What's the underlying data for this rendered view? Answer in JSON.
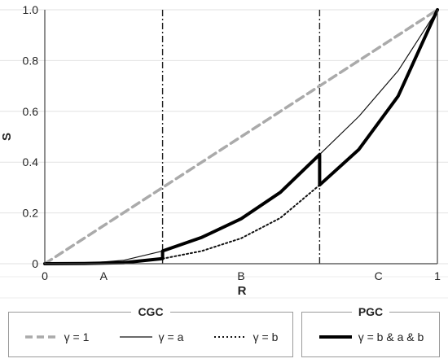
{
  "chart_data": {
    "type": "line",
    "xlabel": "R",
    "ylabel": "S",
    "xlim": [
      0,
      1
    ],
    "ylim": [
      0,
      1
    ],
    "grid": "horizontal",
    "x_tick_labels": [
      {
        "x": 0,
        "label": "0"
      },
      {
        "x": 0.15,
        "label": "A"
      },
      {
        "x": 0.5,
        "label": "B"
      },
      {
        "x": 0.85,
        "label": "C"
      },
      {
        "x": 1,
        "label": "1"
      }
    ],
    "y_tick_labels": [
      "0",
      "0.2",
      "0.4",
      "0.6",
      "0.8",
      "1.0"
    ],
    "y_ticks": [
      0,
      0.2,
      0.4,
      0.6,
      0.8,
      1.0
    ],
    "vlines": [
      0.3,
      0.7
    ],
    "series": [
      {
        "name": "γ = 1",
        "group": "CGC",
        "style": "dashed",
        "color": "#aaaaaa",
        "x": [
          0,
          1
        ],
        "y": [
          0,
          1
        ]
      },
      {
        "name": "γ = a",
        "group": "CGC",
        "style": "thin",
        "color": "#111111",
        "x": [
          0,
          0.1,
          0.2,
          0.3,
          0.4,
          0.5,
          0.6,
          0.7,
          0.8,
          0.9,
          1.0
        ],
        "y": [
          0,
          0.001,
          0.013,
          0.05,
          0.104,
          0.177,
          0.281,
          0.43,
          0.58,
          0.76,
          1.0
        ]
      },
      {
        "name": "γ = b",
        "group": "CGC",
        "style": "dotted",
        "color": "#111111",
        "x": [
          0.3,
          0.4,
          0.5,
          0.6,
          0.7
        ],
        "y": [
          0.02,
          0.05,
          0.1,
          0.18,
          0.31
        ]
      },
      {
        "name": "γ = b & a & b",
        "group": "PGC",
        "style": "thick",
        "color": "#000000",
        "x": [
          0,
          0.1,
          0.2,
          0.3,
          0.3,
          0.4,
          0.5,
          0.6,
          0.7,
          0.7,
          0.8,
          0.9,
          1.0
        ],
        "y": [
          0,
          0.001,
          0.004,
          0.02,
          0.05,
          0.104,
          0.177,
          0.281,
          0.43,
          0.31,
          0.45,
          0.66,
          1.0
        ]
      }
    ]
  },
  "legend": {
    "cgc_title": "CGC",
    "pgc_title": "PGC",
    "cgc_items": [
      {
        "label": "γ = 1"
      },
      {
        "label": "γ = a"
      },
      {
        "label": "γ = b"
      }
    ],
    "pgc_items": [
      {
        "label": "γ = b & a & b"
      }
    ]
  }
}
